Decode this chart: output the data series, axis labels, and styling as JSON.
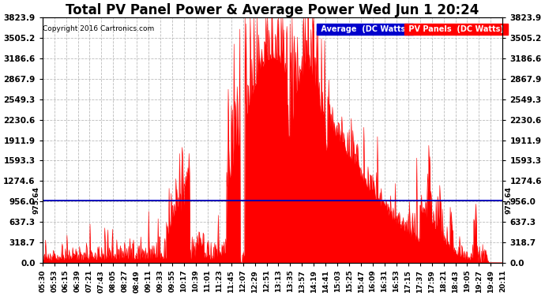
{
  "title": "Total PV Panel Power & Average Power Wed Jun 1 20:24",
  "copyright": "Copyright 2016 Cartronics.com",
  "yticks": [
    0.0,
    318.7,
    637.3,
    956.0,
    1274.6,
    1593.3,
    1911.9,
    2230.6,
    2549.3,
    2867.9,
    3186.6,
    3505.2,
    3823.9
  ],
  "hline_value": 975.64,
  "hline_label": "975.64",
  "ymax": 3823.9,
  "ymin": 0.0,
  "bg_color": "#ffffff",
  "plot_bg_color": "#ffffff",
  "grid_color": "#bbbbbb",
  "fill_color": "#ff0000",
  "title_fontsize": 12,
  "xtick_fontsize": 6.5,
  "ytick_fontsize": 7.5,
  "xtick_labels": [
    "05:30",
    "05:53",
    "06:15",
    "06:39",
    "07:21",
    "07:43",
    "08:05",
    "08:27",
    "08:49",
    "09:11",
    "09:33",
    "09:55",
    "10:17",
    "10:39",
    "11:01",
    "11:23",
    "11:45",
    "12:07",
    "12:29",
    "12:51",
    "13:13",
    "13:35",
    "13:57",
    "14:19",
    "14:41",
    "15:03",
    "15:25",
    "15:47",
    "16:09",
    "16:31",
    "16:53",
    "17:15",
    "17:37",
    "17:59",
    "18:21",
    "18:43",
    "19:05",
    "19:27",
    "19:49",
    "20:11"
  ]
}
